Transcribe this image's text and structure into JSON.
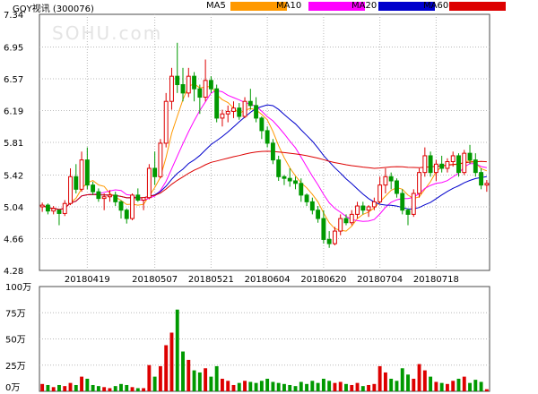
{
  "header": {
    "title": "GQY视讯 (300076)",
    "legend": [
      {
        "label": "MA5",
        "color": "#ff9900"
      },
      {
        "label": "MA10",
        "color": "#ff00ff"
      },
      {
        "label": "MA20",
        "color": "#0000cc"
      },
      {
        "label": "MA60",
        "color": "#dd0000"
      }
    ]
  },
  "watermark": "SOHU.com",
  "colors": {
    "up": "#dd0000",
    "down": "#009900",
    "flat": "#444444"
  },
  "chart_data": {
    "type": "candlestick",
    "title": "GQY视讯 (300076)",
    "price_axis": {
      "ticks": [
        "7.34",
        "6.95",
        "6.57",
        "6.19",
        "5.81",
        "5.42",
        "5.04",
        "4.66",
        "4.28"
      ],
      "range": [
        4.28,
        7.34
      ]
    },
    "volume_axis": {
      "ticks": [
        "100万",
        "75万",
        "50万",
        "25万",
        "0万"
      ],
      "range": [
        0,
        100
      ]
    },
    "date_labels": [
      {
        "label": "20180419",
        "index": 8
      },
      {
        "label": "20180507",
        "index": 20
      },
      {
        "label": "20180521",
        "index": 30
      },
      {
        "label": "20180604",
        "index": 40
      },
      {
        "label": "20180620",
        "index": 50
      },
      {
        "label": "20180704",
        "index": 60
      },
      {
        "label": "20180718",
        "index": 70
      }
    ],
    "candles": [
      [
        5.04,
        5.09,
        4.98,
        5.06,
        7
      ],
      [
        5.06,
        5.08,
        4.95,
        4.99,
        6
      ],
      [
        4.99,
        5.05,
        4.95,
        5.02,
        4
      ],
      [
        5.0,
        5.0,
        4.82,
        4.96,
        6
      ],
      [
        4.96,
        5.12,
        4.93,
        5.08,
        5
      ],
      [
        5.08,
        5.5,
        5.06,
        5.4,
        8
      ],
      [
        5.4,
        5.55,
        5.2,
        5.25,
        6
      ],
      [
        5.25,
        5.7,
        5.22,
        5.6,
        14
      ],
      [
        5.6,
        5.75,
        5.25,
        5.3,
        12
      ],
      [
        5.3,
        5.34,
        5.18,
        5.22,
        6
      ],
      [
        5.22,
        5.26,
        5.1,
        5.14,
        5
      ],
      [
        5.14,
        5.2,
        5.0,
        5.16,
        4
      ],
      [
        5.16,
        5.24,
        5.1,
        5.18,
        3
      ],
      [
        5.18,
        5.22,
        5.05,
        5.1,
        5
      ],
      [
        5.1,
        5.12,
        4.9,
        5.0,
        7
      ],
      [
        5.0,
        5.02,
        4.84,
        4.9,
        6
      ],
      [
        4.9,
        5.2,
        4.88,
        5.18,
        4
      ],
      [
        5.18,
        5.26,
        5.1,
        5.12,
        3
      ],
      [
        5.12,
        5.14,
        5.0,
        5.15,
        3
      ],
      [
        5.15,
        5.55,
        5.13,
        5.5,
        25
      ],
      [
        5.5,
        5.7,
        5.3,
        5.4,
        14
      ],
      [
        5.4,
        5.85,
        5.38,
        5.8,
        24
      ],
      [
        5.8,
        6.4,
        5.75,
        6.3,
        44
      ],
      [
        6.3,
        6.7,
        6.2,
        6.6,
        56
      ],
      [
        6.6,
        7.0,
        6.4,
        6.5,
        78
      ],
      [
        6.5,
        6.7,
        6.3,
        6.4,
        38
      ],
      [
        6.4,
        6.7,
        6.35,
        6.6,
        30
      ],
      [
        6.6,
        6.65,
        6.3,
        6.45,
        20
      ],
      [
        6.45,
        6.5,
        6.15,
        6.35,
        18
      ],
      [
        6.35,
        6.8,
        6.3,
        6.55,
        22
      ],
      [
        6.55,
        6.6,
        6.4,
        6.45,
        14
      ],
      [
        6.45,
        6.5,
        6.05,
        6.1,
        24
      ],
      [
        6.1,
        6.2,
        6.0,
        6.15,
        12
      ],
      [
        6.15,
        6.25,
        6.05,
        6.18,
        10
      ],
      [
        6.18,
        6.3,
        6.1,
        6.22,
        6
      ],
      [
        6.22,
        6.28,
        6.08,
        6.12,
        8
      ],
      [
        6.12,
        6.35,
        6.1,
        6.3,
        10
      ],
      [
        6.3,
        6.45,
        6.2,
        6.25,
        9
      ],
      [
        6.25,
        6.35,
        6.05,
        6.1,
        8
      ],
      [
        6.1,
        6.12,
        5.85,
        5.95,
        10
      ],
      [
        5.95,
        6.0,
        5.75,
        5.8,
        12
      ],
      [
        5.8,
        5.85,
        5.55,
        5.6,
        9
      ],
      [
        5.6,
        5.65,
        5.35,
        5.4,
        8
      ],
      [
        5.4,
        5.42,
        5.3,
        5.38,
        7
      ],
      [
        5.38,
        5.5,
        5.28,
        5.35,
        6
      ],
      [
        5.35,
        5.4,
        5.25,
        5.32,
        5
      ],
      [
        5.32,
        5.38,
        5.1,
        5.18,
        9
      ],
      [
        5.18,
        5.2,
        5.05,
        5.1,
        7
      ],
      [
        5.1,
        5.15,
        4.95,
        5.0,
        10
      ],
      [
        5.0,
        5.05,
        4.85,
        4.9,
        8
      ],
      [
        4.9,
        5.0,
        4.6,
        4.65,
        12
      ],
      [
        4.65,
        4.75,
        4.55,
        4.6,
        10
      ],
      [
        4.6,
        4.8,
        4.58,
        4.75,
        8
      ],
      [
        4.75,
        4.95,
        4.7,
        4.9,
        9
      ],
      [
        4.9,
        4.95,
        4.82,
        4.85,
        7
      ],
      [
        4.85,
        5.0,
        4.82,
        4.95,
        6
      ],
      [
        4.95,
        5.1,
        4.9,
        5.05,
        8
      ],
      [
        5.05,
        5.1,
        4.95,
        5.0,
        5
      ],
      [
        5.0,
        5.06,
        4.92,
        5.04,
        6
      ],
      [
        5.04,
        5.15,
        5.0,
        5.1,
        7
      ],
      [
        5.1,
        5.4,
        5.08,
        5.3,
        24
      ],
      [
        5.3,
        5.5,
        5.2,
        5.4,
        18
      ],
      [
        5.4,
        5.45,
        5.25,
        5.35,
        12
      ],
      [
        5.35,
        5.38,
        5.15,
        5.2,
        10
      ],
      [
        5.2,
        5.25,
        4.95,
        5.0,
        22
      ],
      [
        5.0,
        5.02,
        4.82,
        4.95,
        16
      ],
      [
        4.95,
        5.25,
        4.92,
        5.2,
        12
      ],
      [
        5.2,
        5.5,
        5.15,
        5.45,
        26
      ],
      [
        5.45,
        5.75,
        5.4,
        5.65,
        20
      ],
      [
        5.65,
        5.7,
        5.4,
        5.45,
        14
      ],
      [
        5.45,
        5.6,
        5.35,
        5.55,
        9
      ],
      [
        5.55,
        5.65,
        5.45,
        5.5,
        8
      ],
      [
        5.5,
        5.62,
        5.45,
        5.58,
        7
      ],
      [
        5.58,
        5.7,
        5.52,
        5.65,
        10
      ],
      [
        5.65,
        5.68,
        5.4,
        5.45,
        12
      ],
      [
        5.45,
        5.72,
        5.42,
        5.68,
        14
      ],
      [
        5.68,
        5.78,
        5.55,
        5.6,
        8
      ],
      [
        5.6,
        5.68,
        5.4,
        5.45,
        11
      ],
      [
        5.45,
        5.5,
        5.25,
        5.3,
        9
      ],
      [
        5.3,
        5.36,
        5.22,
        5.32,
        2
      ]
    ]
  }
}
